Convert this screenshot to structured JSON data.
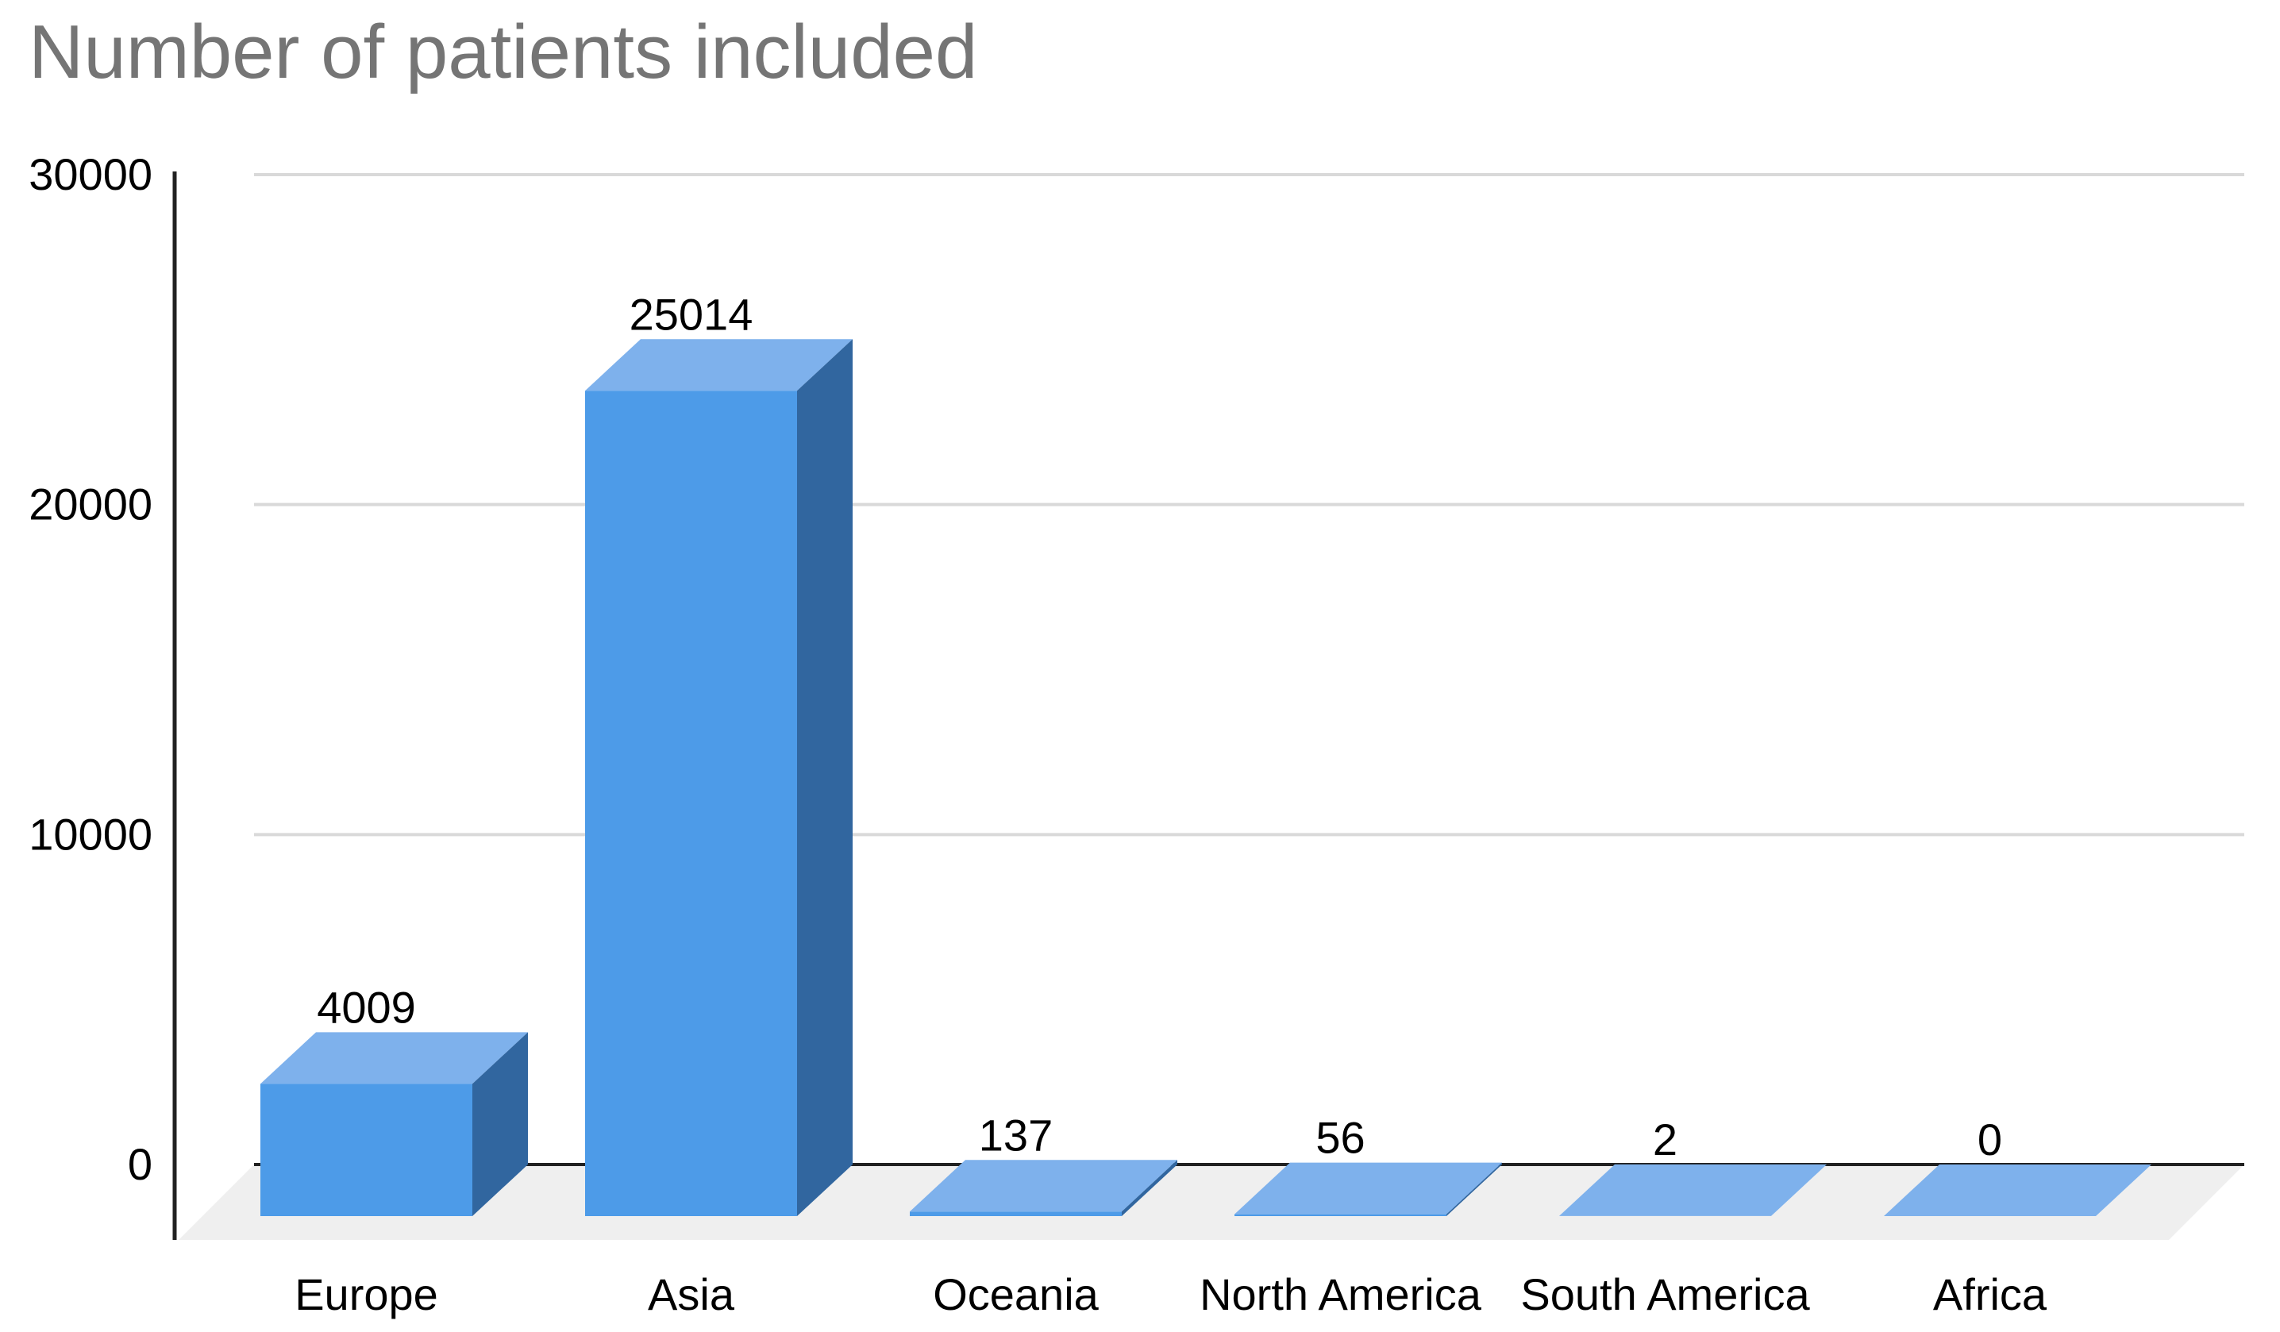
{
  "chart_data": {
    "type": "bar",
    "variant": "3d-column",
    "title": "Number of patients included",
    "categories": [
      "Europe",
      "Asia",
      "Oceania",
      "North America",
      "South America",
      "Africa"
    ],
    "values": [
      4009,
      25014,
      137,
      56,
      2,
      0
    ],
    "value_labels": [
      "4009",
      "25014",
      "137",
      "56",
      "2",
      "0"
    ],
    "xlabel": "",
    "ylabel": "",
    "ylim": [
      0,
      30000
    ],
    "yticks": [
      0,
      10000,
      20000,
      30000
    ],
    "ytick_labels": [
      "0",
      "10000",
      "20000",
      "30000"
    ],
    "grid": true,
    "legend": "none",
    "colors": {
      "bar_front": "#4d9be8",
      "bar_top": "#7eb1ec",
      "bar_side": "#31669f",
      "title_text": "#757575",
      "axis_text": "#000000",
      "gridline": "#d9d9d9",
      "baseline": "#212121",
      "axis_line": "#212121",
      "floor": "#efefef",
      "background": "#ffffff"
    }
  }
}
